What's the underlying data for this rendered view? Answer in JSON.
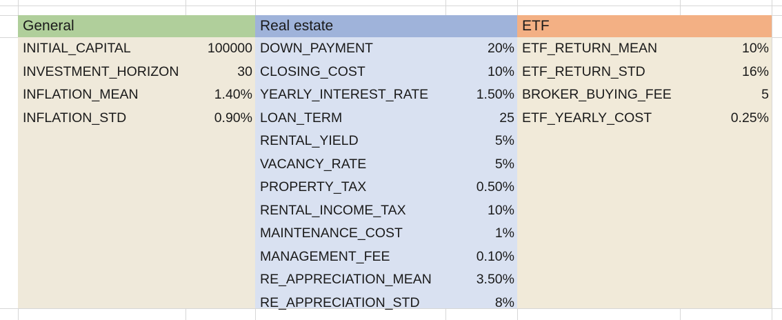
{
  "colors": {
    "general_header": "#b0cf9b",
    "general_body": "#efe9da",
    "realestate_header": "#9fb3da",
    "realestate_body": "#d9e1f1",
    "etf_header": "#f3b084",
    "etf_body": "#f1ead9",
    "gridline": "#d6d6d6",
    "text": "#1a1a1a"
  },
  "general": {
    "header": "General",
    "rows": [
      {
        "label": "INITIAL_CAPITAL",
        "value": "100000"
      },
      {
        "label": "INVESTMENT_HORIZON",
        "value": "30"
      },
      {
        "label": "INFLATION_MEAN",
        "value": "1.40%"
      },
      {
        "label": "INFLATION_STD",
        "value": "0.90%"
      }
    ]
  },
  "realestate": {
    "header": "Real estate",
    "rows": [
      {
        "label": "DOWN_PAYMENT",
        "value": "20%"
      },
      {
        "label": "CLOSING_COST",
        "value": "10%"
      },
      {
        "label": "YEARLY_INTEREST_RATE",
        "value": "1.50%"
      },
      {
        "label": "LOAN_TERM",
        "value": "25"
      },
      {
        "label": "RENTAL_YIELD",
        "value": "5%"
      },
      {
        "label": "VACANCY_RATE",
        "value": "5%"
      },
      {
        "label": "PROPERTY_TAX",
        "value": "0.50%"
      },
      {
        "label": "RENTAL_INCOME_TAX",
        "value": "10%"
      },
      {
        "label": "MAINTENANCE_COST",
        "value": "1%"
      },
      {
        "label": "MANAGEMENT_FEE",
        "value": "0.10%"
      },
      {
        "label": "RE_APPRECIATION_MEAN",
        "value": "3.50%"
      },
      {
        "label": "RE_APPRECIATION_STD",
        "value": "8%"
      }
    ]
  },
  "etf": {
    "header": "ETF",
    "rows": [
      {
        "label": "ETF_RETURN_MEAN",
        "value": "10%"
      },
      {
        "label": "ETF_RETURN_STD",
        "value": "16%"
      },
      {
        "label": "BROKER_BUYING_FEE",
        "value": "5"
      },
      {
        "label": "ETF_YEARLY_COST",
        "value": "0.25%"
      }
    ]
  }
}
